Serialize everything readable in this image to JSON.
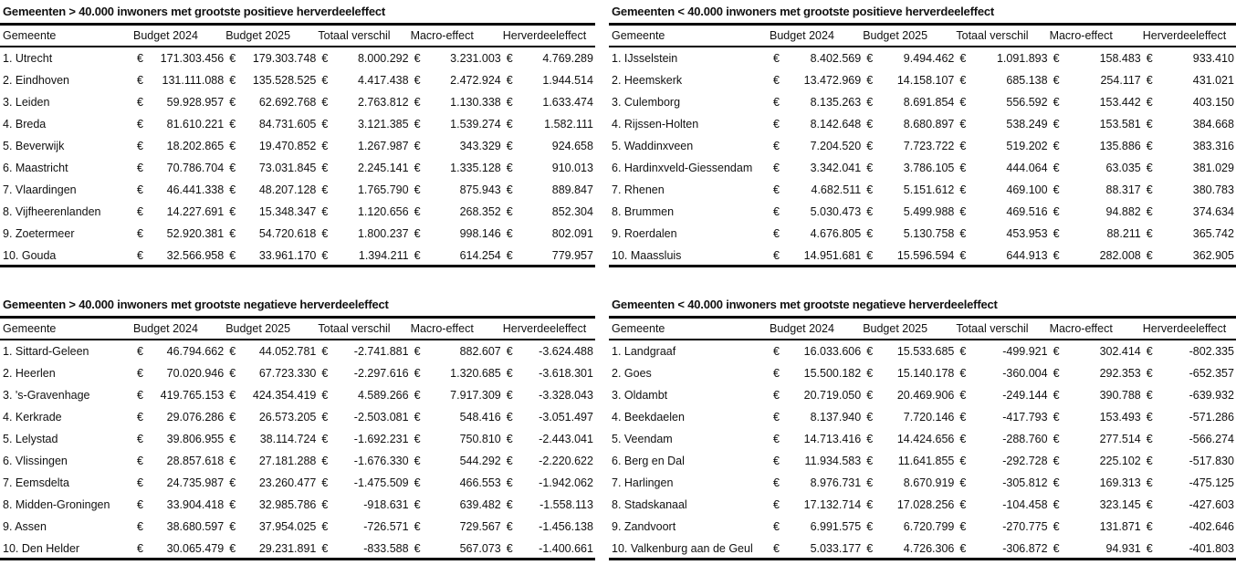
{
  "currency_symbol": "€",
  "tables": [
    {
      "title": "Gemeenten > 40.000 inwoners met grootste positieve herverdeeleffect",
      "headers": [
        "Gemeente",
        "Budget 2024",
        "Budget 2025",
        "Totaal verschil",
        "Macro-effect",
        "Herverdeeleffect"
      ],
      "rows": [
        [
          "1. Utrecht",
          "171.303.456",
          "179.303.748",
          "8.000.292",
          "3.231.003",
          "4.769.289"
        ],
        [
          "2. Eindhoven",
          "131.111.088",
          "135.528.525",
          "4.417.438",
          "2.472.924",
          "1.944.514"
        ],
        [
          "3. Leiden",
          "59.928.957",
          "62.692.768",
          "2.763.812",
          "1.130.338",
          "1.633.474"
        ],
        [
          "4. Breda",
          "81.610.221",
          "84.731.605",
          "3.121.385",
          "1.539.274",
          "1.582.111"
        ],
        [
          "5. Beverwijk",
          "18.202.865",
          "19.470.852",
          "1.267.987",
          "343.329",
          "924.658"
        ],
        [
          "6. Maastricht",
          "70.786.704",
          "73.031.845",
          "2.245.141",
          "1.335.128",
          "910.013"
        ],
        [
          "7. Vlaardingen",
          "46.441.338",
          "48.207.128",
          "1.765.790",
          "875.943",
          "889.847"
        ],
        [
          "8. Vijfheerenlanden",
          "14.227.691",
          "15.348.347",
          "1.120.656",
          "268.352",
          "852.304"
        ],
        [
          "9. Zoetermeer",
          "52.920.381",
          "54.720.618",
          "1.800.237",
          "998.146",
          "802.091"
        ],
        [
          "10. Gouda",
          "32.566.958",
          "33.961.170",
          "1.394.211",
          "614.254",
          "779.957"
        ]
      ]
    },
    {
      "title": "Gemeenten < 40.000 inwoners met grootste positieve herverdeeleffect",
      "headers": [
        "Gemeente",
        "Budget 2024",
        "Budget 2025",
        "Totaal verschil",
        "Macro-effect",
        "Herverdeeleffect"
      ],
      "rows": [
        [
          "1. IJsselstein",
          "8.402.569",
          "9.494.462",
          "1.091.893",
          "158.483",
          "933.410"
        ],
        [
          "2. Heemskerk",
          "13.472.969",
          "14.158.107",
          "685.138",
          "254.117",
          "431.021"
        ],
        [
          "3. Culemborg",
          "8.135.263",
          "8.691.854",
          "556.592",
          "153.442",
          "403.150"
        ],
        [
          "4. Rijssen-Holten",
          "8.142.648",
          "8.680.897",
          "538.249",
          "153.581",
          "384.668"
        ],
        [
          "5. Waddinxveen",
          "7.204.520",
          "7.723.722",
          "519.202",
          "135.886",
          "383.316"
        ],
        [
          "6. Hardinxveld-Giessendam",
          "3.342.041",
          "3.786.105",
          "444.064",
          "63.035",
          "381.029"
        ],
        [
          "7. Rhenen",
          "4.682.511",
          "5.151.612",
          "469.100",
          "88.317",
          "380.783"
        ],
        [
          "8. Brummen",
          "5.030.473",
          "5.499.988",
          "469.516",
          "94.882",
          "374.634"
        ],
        [
          "9. Roerdalen",
          "4.676.805",
          "5.130.758",
          "453.953",
          "88.211",
          "365.742"
        ],
        [
          "10. Maassluis",
          "14.951.681",
          "15.596.594",
          "644.913",
          "282.008",
          "362.905"
        ]
      ]
    },
    {
      "title": "Gemeenten > 40.000 inwoners met grootste negatieve herverdeeleffect",
      "headers": [
        "Gemeente",
        "Budget 2024",
        "Budget 2025",
        "Totaal verschil",
        "Macro-effect",
        "Herverdeeleffect"
      ],
      "rows": [
        [
          "1. Sittard-Geleen",
          "46.794.662",
          "44.052.781",
          "-2.741.881",
          "882.607",
          "-3.624.488"
        ],
        [
          "2. Heerlen",
          "70.020.946",
          "67.723.330",
          "-2.297.616",
          "1.320.685",
          "-3.618.301"
        ],
        [
          "3. 's-Gravenhage",
          "419.765.153",
          "424.354.419",
          "4.589.266",
          "7.917.309",
          "-3.328.043"
        ],
        [
          "4. Kerkrade",
          "29.076.286",
          "26.573.205",
          "-2.503.081",
          "548.416",
          "-3.051.497"
        ],
        [
          "5. Lelystad",
          "39.806.955",
          "38.114.724",
          "-1.692.231",
          "750.810",
          "-2.443.041"
        ],
        [
          "6. Vlissingen",
          "28.857.618",
          "27.181.288",
          "-1.676.330",
          "544.292",
          "-2.220.622"
        ],
        [
          "7. Eemsdelta",
          "24.735.987",
          "23.260.477",
          "-1.475.509",
          "466.553",
          "-1.942.062"
        ],
        [
          "8. Midden-Groningen",
          "33.904.418",
          "32.985.786",
          "-918.631",
          "639.482",
          "-1.558.113"
        ],
        [
          "9. Assen",
          "38.680.597",
          "37.954.025",
          "-726.571",
          "729.567",
          "-1.456.138"
        ],
        [
          "10. Den Helder",
          "30.065.479",
          "29.231.891",
          "-833.588",
          "567.073",
          "-1.400.661"
        ]
      ]
    },
    {
      "title": "Gemeenten < 40.000 inwoners met grootste negatieve herverdeeleffect",
      "headers": [
        "Gemeente",
        "Budget 2024",
        "Budget 2025",
        "Totaal verschil",
        "Macro-effect",
        "Herverdeeleffect"
      ],
      "rows": [
        [
          "1. Landgraaf",
          "16.033.606",
          "15.533.685",
          "-499.921",
          "302.414",
          "-802.335"
        ],
        [
          "2. Goes",
          "15.500.182",
          "15.140.178",
          "-360.004",
          "292.353",
          "-652.357"
        ],
        [
          "3. Oldambt",
          "20.719.050",
          "20.469.906",
          "-249.144",
          "390.788",
          "-639.932"
        ],
        [
          "4. Beekdaelen",
          "8.137.940",
          "7.720.146",
          "-417.793",
          "153.493",
          "-571.286"
        ],
        [
          "5. Veendam",
          "14.713.416",
          "14.424.656",
          "-288.760",
          "277.514",
          "-566.274"
        ],
        [
          "6. Berg en Dal",
          "11.934.583",
          "11.641.855",
          "-292.728",
          "225.102",
          "-517.830"
        ],
        [
          "7. Harlingen",
          "8.976.731",
          "8.670.919",
          "-305.812",
          "169.313",
          "-475.125"
        ],
        [
          "8. Stadskanaal",
          "17.132.714",
          "17.028.256",
          "-104.458",
          "323.145",
          "-427.603"
        ],
        [
          "9. Zandvoort",
          "6.991.575",
          "6.720.799",
          "-270.775",
          "131.871",
          "-402.646"
        ],
        [
          "10. Valkenburg aan de Geul",
          "5.033.177",
          "4.726.306",
          "-306.872",
          "94.931",
          "-401.803"
        ]
      ]
    }
  ]
}
